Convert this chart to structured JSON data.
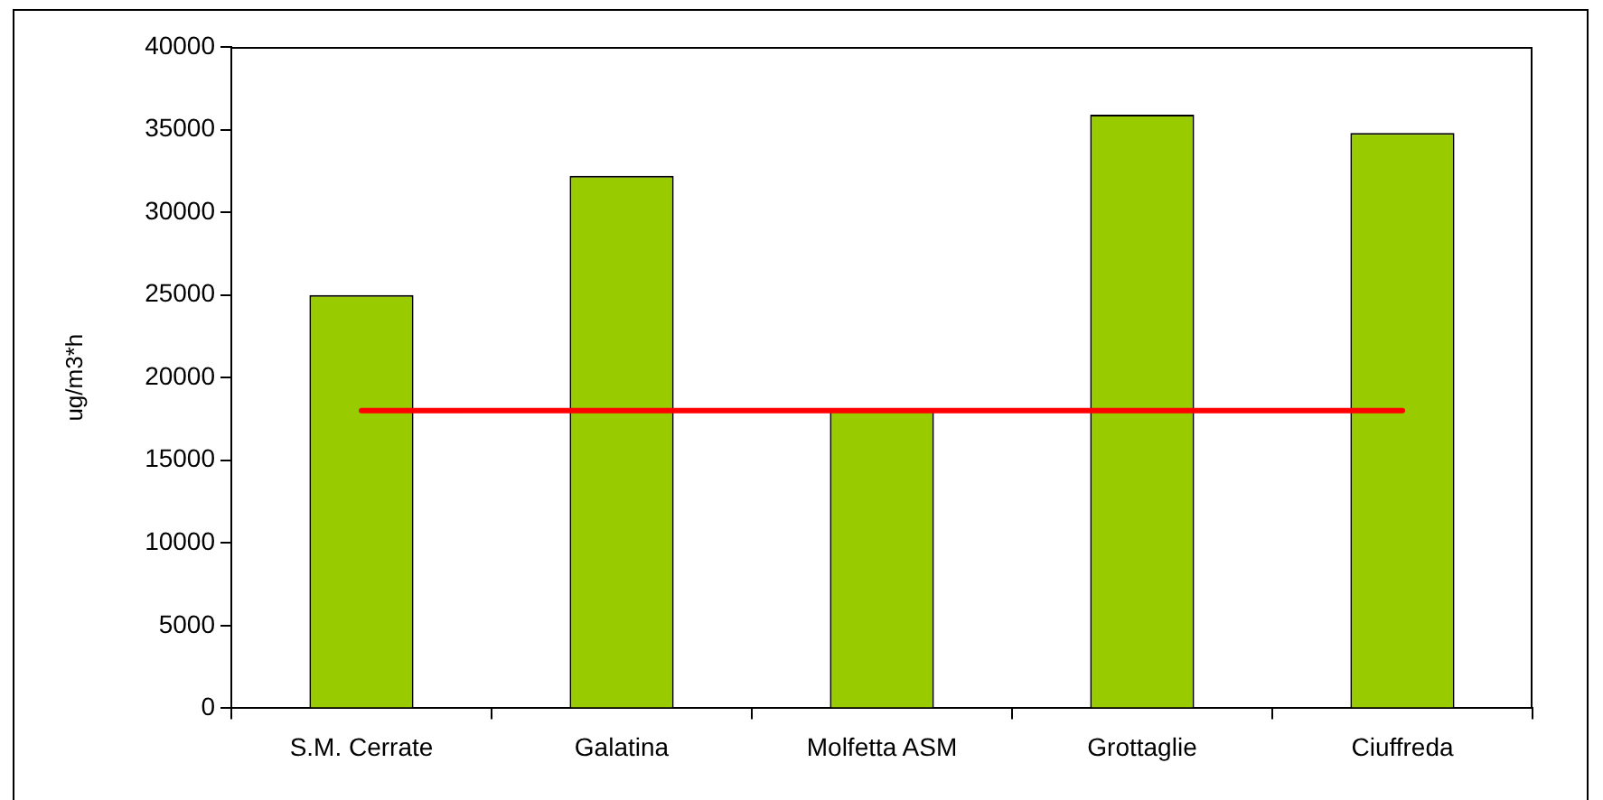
{
  "chart_data": {
    "type": "bar",
    "ylabel": "ug/m3*h",
    "categories": [
      "S.M. Cerrate",
      "Galatina",
      "Molfetta ASM",
      "Grottaglie",
      "Ciuffreda"
    ],
    "series": [
      {
        "color": "#99cc00",
        "values": [
          25000,
          32200,
          18000,
          35900,
          34800
        ]
      },
      {
        "type": "line",
        "color": "#ff0000",
        "values": [
          18000,
          18000,
          18000,
          18000,
          18000
        ]
      }
    ],
    "ylim": [
      0,
      40000
    ],
    "yticks": [
      0,
      5000,
      10000,
      15000,
      20000,
      25000,
      30000,
      35000,
      40000
    ],
    "marker": "none"
  }
}
